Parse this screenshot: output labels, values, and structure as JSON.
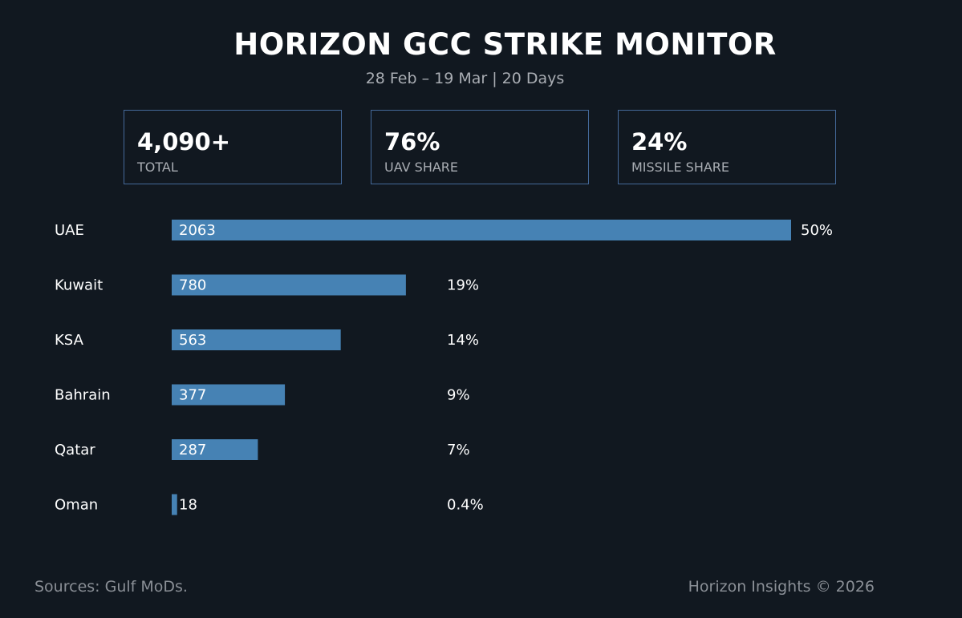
{
  "header": {
    "title": "HORIZON GCC STRIKE MONITOR",
    "subtitle": "28 Feb – 19 Mar | 20 Days"
  },
  "kpis": [
    {
      "value": "4,090+",
      "label": "TOTAL"
    },
    {
      "value": "76%",
      "label": "UAV SHARE"
    },
    {
      "value": "24%",
      "label": "MISSILE SHARE"
    }
  ],
  "colors": {
    "background": "#111820",
    "bar": "#4682b4",
    "card_border": "#44699a"
  },
  "chart_data": {
    "type": "bar",
    "orientation": "horizontal",
    "title": "HORIZON GCC STRIKE MONITOR",
    "categories": [
      "UAE",
      "Kuwait",
      "KSA",
      "Bahrain",
      "Qatar",
      "Oman"
    ],
    "values": [
      2063,
      780,
      563,
      377,
      287,
      18
    ],
    "value_labels": [
      "2063",
      "780",
      "563",
      "377",
      "287",
      "18"
    ],
    "percent_labels": [
      "50%",
      "19%",
      "14%",
      "9%",
      "7%",
      "0.4%"
    ],
    "xlim": [
      0,
      2063
    ],
    "grid": false
  },
  "footer": {
    "sources": "Sources: Gulf MoDs.",
    "credit": "Horizon Insights © 2026"
  }
}
